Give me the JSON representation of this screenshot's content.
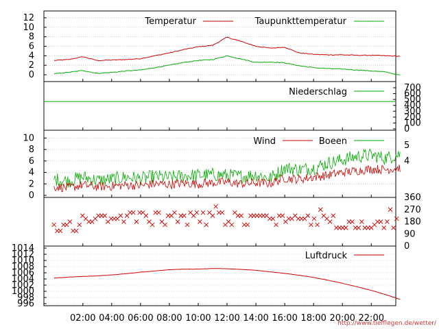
{
  "credit": "http://www.tiefflegen.de/wetter/",
  "colors": {
    "red": "#cc0000",
    "green": "#00aa00",
    "grid": "#aaaaaa"
  },
  "chart_data": [
    {
      "panel": "temperature",
      "type": "line",
      "ylim": [
        -1,
        13
      ],
      "yticks": [
        "12",
        "10",
        "8",
        "6",
        "4",
        "2",
        "0"
      ],
      "grid": true,
      "legend_position": "top-right",
      "x": [
        0,
        1,
        2,
        3,
        4,
        5,
        6,
        7,
        8,
        9,
        10,
        11,
        12,
        13,
        14,
        15,
        16,
        17,
        18,
        19,
        20,
        21,
        22,
        23,
        24
      ],
      "series": [
        {
          "name": "Temperatur",
          "color": "red",
          "values": [
            3.0,
            3.2,
            3.8,
            3.0,
            3.1,
            3.2,
            3.4,
            4.0,
            4.6,
            5.3,
            5.9,
            6.2,
            7.9,
            7.0,
            6.0,
            5.6,
            5.8,
            4.6,
            4.3,
            4.2,
            4.2,
            4.1,
            4.1,
            4.0,
            3.9
          ]
        },
        {
          "name": "Taupunkttemperatur",
          "color": "green",
          "values": [
            0.2,
            0.5,
            0.9,
            0.3,
            0.5,
            0.8,
            1.0,
            1.5,
            2.0,
            2.6,
            3.0,
            3.2,
            4.0,
            3.3,
            2.6,
            2.7,
            2.5,
            1.9,
            1.5,
            1.3,
            1.2,
            1.0,
            0.8,
            0.6,
            -0.1
          ]
        }
      ]
    },
    {
      "panel": "precipitation",
      "type": "line",
      "ylim": [
        0,
        700
      ],
      "yticks": [
        "700",
        "600",
        "500",
        "400",
        "300",
        "200",
        "100",
        "0"
      ],
      "grid": false,
      "legend_position": "top-right",
      "series": [
        {
          "name": "Niederschlag",
          "color": "green",
          "values": [
            465,
            465
          ]
        }
      ]
    },
    {
      "panel": "wind",
      "type": "line",
      "ylim": [
        0,
        11
      ],
      "yticks": [
        "10",
        "8",
        "6",
        "4",
        "2",
        "0"
      ],
      "right_ticks": [
        "5",
        "4"
      ],
      "grid": true,
      "legend_position": "top-right",
      "x": [
        0,
        1,
        2,
        3,
        4,
        5,
        6,
        7,
        8,
        9,
        10,
        11,
        12,
        13,
        14,
        15,
        16,
        17,
        18,
        19,
        20,
        21,
        22,
        23,
        24
      ],
      "series": [
        {
          "name": "Wind",
          "color": "red",
          "values": [
            1.5,
            1.3,
            1.8,
            1.5,
            1.6,
            1.8,
            1.7,
            2.0,
            1.9,
            2.1,
            2.0,
            2.2,
            2.3,
            2.0,
            2.2,
            2.1,
            3.0,
            2.8,
            3.2,
            3.5,
            4.0,
            4.3,
            4.6,
            4.5,
            4.8
          ]
        },
        {
          "name": "Boeen",
          "color": "green",
          "values": [
            2.8,
            2.5,
            3.2,
            2.6,
            2.8,
            3.2,
            2.9,
            3.3,
            3.1,
            3.4,
            3.5,
            3.6,
            3.5,
            3.3,
            3.6,
            3.0,
            4.8,
            4.5,
            4.8,
            5.6,
            6.2,
            6.8,
            7.0,
            6.5,
            7.2
          ]
        }
      ]
    },
    {
      "panel": "wind-direction",
      "type": "scatter",
      "ylim": [
        0,
        360
      ],
      "right_ticks": [
        "360",
        "270",
        "180",
        "90",
        "0"
      ],
      "grid": false,
      "color": "red",
      "marker": "x"
    },
    {
      "panel": "pressure",
      "type": "line",
      "ylim": [
        996,
        1014
      ],
      "yticks": [
        "1014",
        "1012",
        "1010",
        "1008",
        "1006",
        "1004",
        "1002",
        "1000",
        "998",
        "996"
      ],
      "grid": true,
      "legend_position": "top-right",
      "x": [
        0,
        1,
        2,
        3,
        4,
        5,
        6,
        7,
        8,
        9,
        10,
        11,
        12,
        13,
        14,
        15,
        16,
        17,
        18,
        19,
        20,
        21,
        22,
        23,
        24
      ],
      "series": [
        {
          "name": "Luftdruck",
          "color": "red",
          "values": [
            1004.3,
            1004.6,
            1004.8,
            1005.0,
            1005.3,
            1005.7,
            1006.2,
            1006.6,
            1007.0,
            1007.2,
            1007.2,
            1007.4,
            1007.3,
            1007.1,
            1006.8,
            1006.3,
            1005.8,
            1005.2,
            1004.5,
            1003.6,
            1002.6,
            1001.5,
            1000.3,
            998.9,
            997.4
          ]
        }
      ]
    }
  ],
  "xaxis": {
    "labels": [
      "02:00",
      "04:00",
      "06:00",
      "08:00",
      "10:00",
      "12:00",
      "14:00",
      "16:00",
      "18:00",
      "20:00",
      "22:00"
    ]
  }
}
